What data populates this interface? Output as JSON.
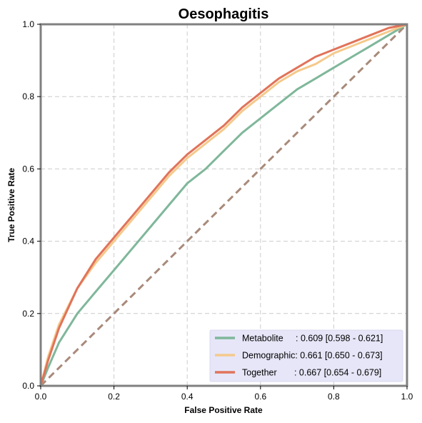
{
  "chart_data": {
    "type": "line",
    "title": "Oesophagitis",
    "xlabel": "False Positive Rate",
    "ylabel": "True Positive Rate",
    "xlim": [
      0,
      1
    ],
    "ylim": [
      0,
      1
    ],
    "xticks": [
      "0.0",
      "0.2",
      "0.4",
      "0.6",
      "0.8",
      "1.0"
    ],
    "yticks": [
      "0.0",
      "0.2",
      "0.4",
      "0.6",
      "0.8",
      "1.0"
    ],
    "grid": true,
    "legend_position": "bottom-right",
    "series": [
      {
        "name": "Metabolite",
        "legend_label": "Metabolite     : 0.609 [0.598 - 0.621]",
        "color": "#7fb79a",
        "x": [
          0,
          0.02,
          0.05,
          0.1,
          0.15,
          0.2,
          0.25,
          0.3,
          0.35,
          0.4,
          0.45,
          0.5,
          0.55,
          0.6,
          0.65,
          0.7,
          0.75,
          0.8,
          0.85,
          0.9,
          0.95,
          1.0
        ],
        "y": [
          0,
          0.05,
          0.12,
          0.2,
          0.26,
          0.32,
          0.38,
          0.44,
          0.5,
          0.56,
          0.6,
          0.65,
          0.7,
          0.74,
          0.78,
          0.82,
          0.85,
          0.88,
          0.91,
          0.94,
          0.97,
          1.0
        ]
      },
      {
        "name": "Demographic",
        "legend_label": "Demographic: 0.661 [0.650 - 0.673]",
        "color": "#f5c98b",
        "x": [
          0,
          0.02,
          0.05,
          0.1,
          0.15,
          0.2,
          0.25,
          0.3,
          0.35,
          0.4,
          0.45,
          0.5,
          0.55,
          0.6,
          0.65,
          0.7,
          0.75,
          0.8,
          0.85,
          0.9,
          0.95,
          1.0
        ],
        "y": [
          0,
          0.08,
          0.17,
          0.27,
          0.34,
          0.4,
          0.46,
          0.52,
          0.58,
          0.63,
          0.67,
          0.71,
          0.76,
          0.8,
          0.84,
          0.87,
          0.89,
          0.92,
          0.94,
          0.96,
          0.98,
          1.0
        ]
      },
      {
        "name": "Together",
        "legend_label": "Together       : 0.667 [0.654 - 0.679]",
        "color": "#e0735a",
        "x": [
          0,
          0.02,
          0.05,
          0.1,
          0.15,
          0.2,
          0.25,
          0.3,
          0.35,
          0.4,
          0.45,
          0.5,
          0.55,
          0.6,
          0.65,
          0.7,
          0.75,
          0.8,
          0.85,
          0.9,
          0.95,
          1.0
        ],
        "y": [
          0,
          0.07,
          0.16,
          0.27,
          0.35,
          0.41,
          0.47,
          0.53,
          0.59,
          0.64,
          0.68,
          0.72,
          0.77,
          0.81,
          0.85,
          0.88,
          0.91,
          0.93,
          0.95,
          0.97,
          0.99,
          1.0
        ]
      }
    ],
    "reference_line": {
      "x": [
        0,
        1
      ],
      "y": [
        0,
        1
      ],
      "color": "#a88a7a",
      "style": "dashed"
    }
  }
}
